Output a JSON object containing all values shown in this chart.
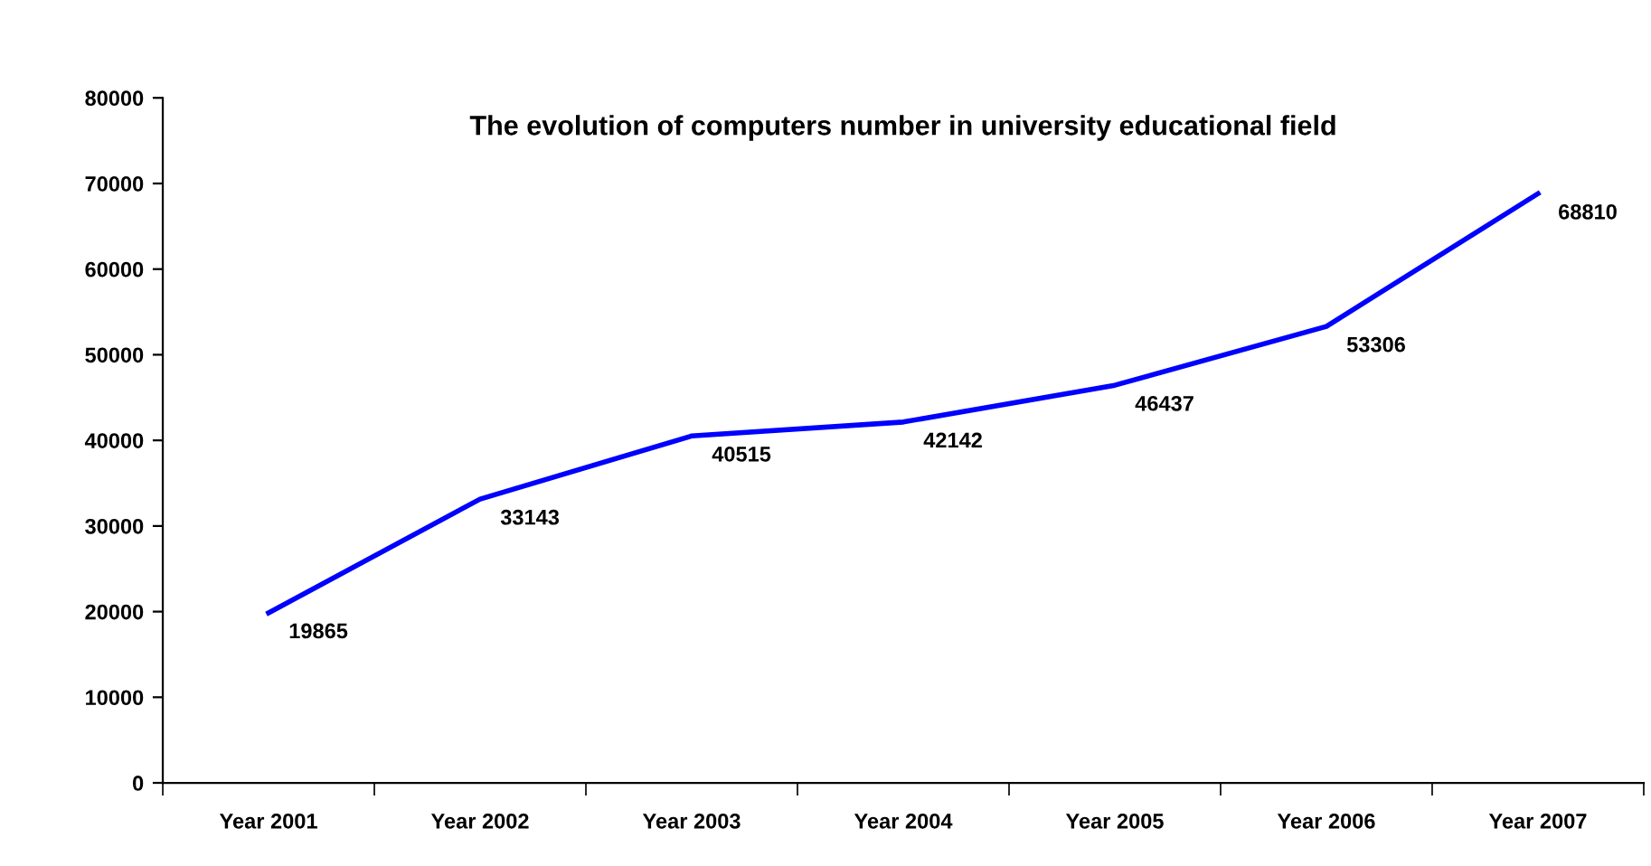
{
  "chart_data": {
    "type": "line",
    "title": "The evolution of computers number in university educational field",
    "categories": [
      "Year 2001",
      "Year 2002",
      "Year 2003",
      "Year 2004",
      "Year 2005",
      "Year 2006",
      "Year 2007"
    ],
    "series": [
      {
        "color": "#0000ff",
        "values": [
          19865,
          33143,
          40515,
          42142,
          46437,
          53306,
          68810
        ]
      }
    ],
    "ylim": [
      0,
      80000
    ],
    "yticks": [
      0,
      10000,
      20000,
      30000,
      40000,
      50000,
      60000,
      70000,
      80000
    ],
    "data_labels": true,
    "grid": false,
    "marker": "none",
    "line_style": "solid"
  }
}
